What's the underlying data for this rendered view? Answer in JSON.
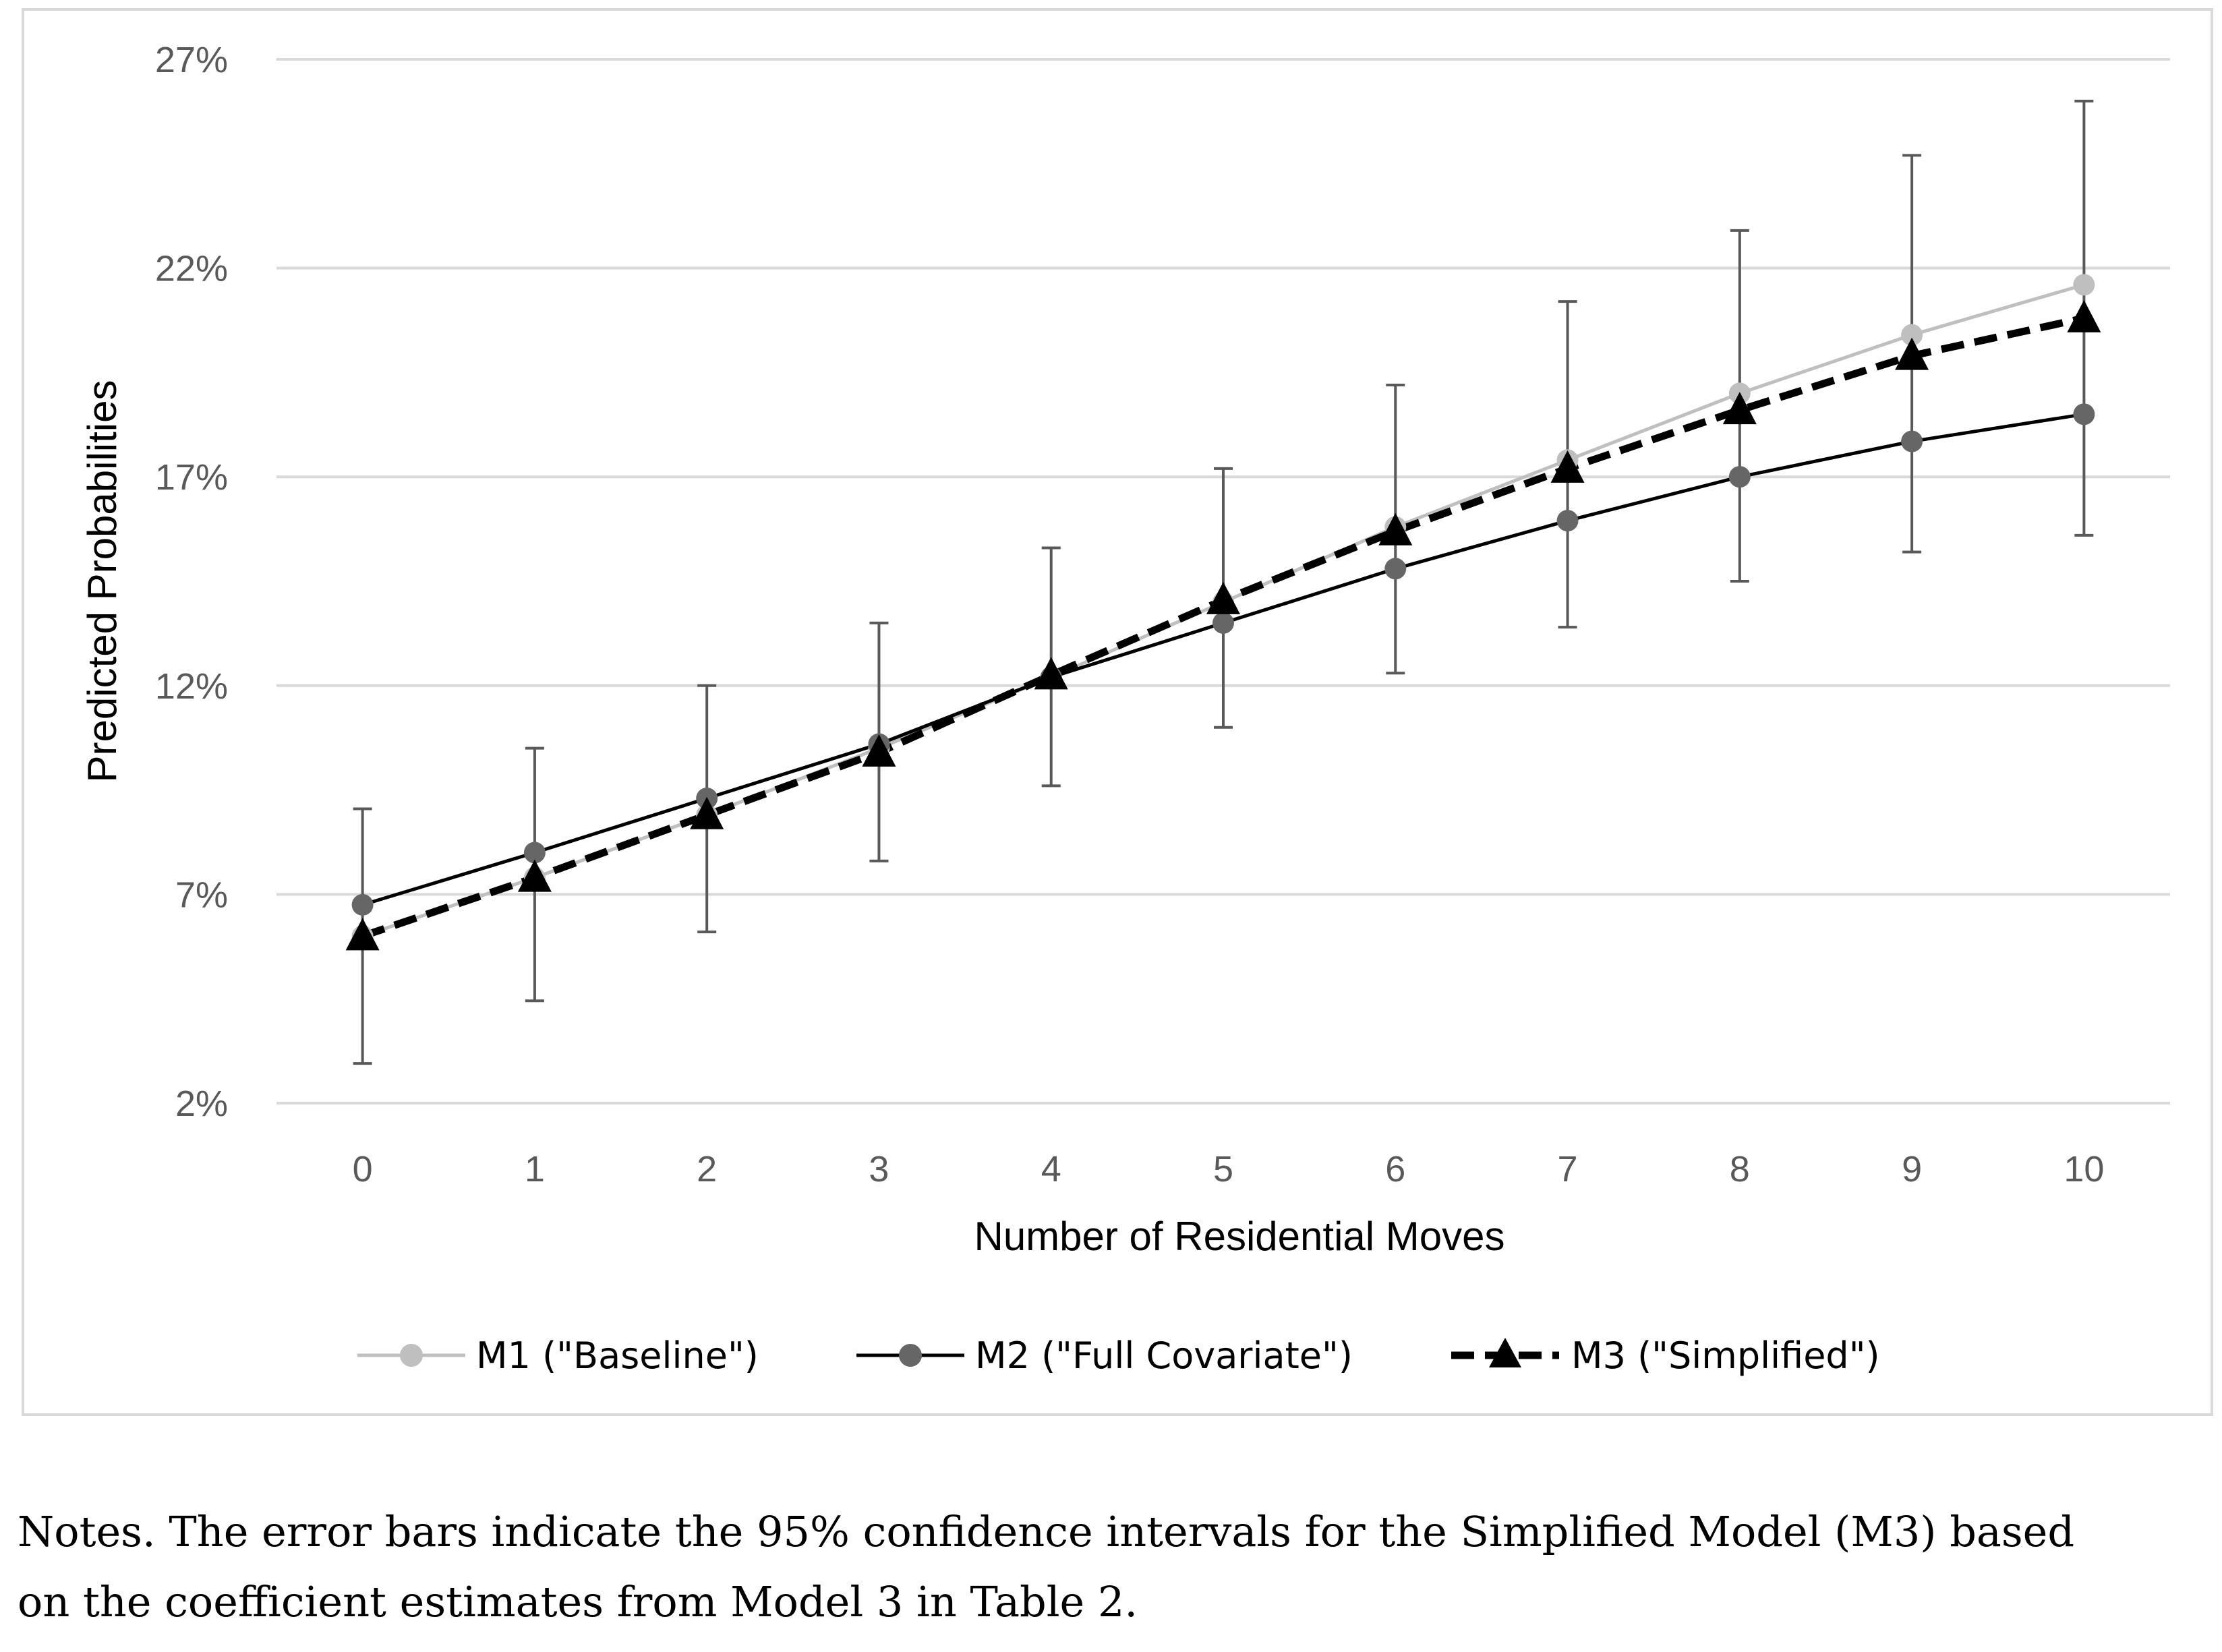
{
  "chart_data": {
    "type": "line",
    "xlabel": "Number of Residential Moves",
    "ylabel": "Predicted Probabilities",
    "x": [
      0,
      1,
      2,
      3,
      4,
      5,
      6,
      7,
      8,
      9,
      10
    ],
    "x_tick_labels": [
      "0",
      "1",
      "2",
      "3",
      "4",
      "5",
      "6",
      "7",
      "8",
      "9",
      "10"
    ],
    "ylim": [
      2,
      27
    ],
    "y_ticks": [
      2,
      7,
      12,
      17,
      22,
      27
    ],
    "y_tick_labels": [
      "2%",
      "7%",
      "12%",
      "17%",
      "22%",
      "27%"
    ],
    "grid": true,
    "legend_position": "bottom",
    "series": [
      {
        "name": "M1 (\"Baseline\")",
        "color": "#bfbfbf",
        "marker": "circle",
        "line_style": "solid",
        "values": [
          6.0,
          7.4,
          8.9,
          10.5,
          12.2,
          14.0,
          15.8,
          17.4,
          19.0,
          20.4,
          21.6
        ]
      },
      {
        "name": "M2 (\"Full Covariate\")",
        "color": "#000000",
        "marker_color": "#666666",
        "marker": "circle",
        "line_style": "solid",
        "values": [
          6.75,
          8.0,
          9.3,
          10.6,
          12.2,
          13.5,
          14.8,
          15.95,
          17.0,
          17.85,
          18.5
        ]
      },
      {
        "name": "M3 (\"Simplified\")",
        "color": "#000000",
        "marker": "triangle",
        "line_style": "dashed",
        "values": [
          6.0,
          7.4,
          8.9,
          10.4,
          12.25,
          14.05,
          15.7,
          17.2,
          18.6,
          19.9,
          20.8
        ],
        "ci_lower": [
          2.95,
          4.45,
          6.1,
          7.8,
          9.6,
          11.0,
          12.3,
          13.4,
          14.5,
          15.2,
          15.6
        ],
        "ci_upper": [
          9.05,
          10.5,
          12.0,
          13.5,
          15.3,
          17.2,
          19.2,
          21.2,
          22.9,
          24.7,
          26.0
        ]
      }
    ],
    "error_bar_color": "#595959"
  },
  "notes": {
    "line1": "Notes. The error bars indicate the 95% confidence intervals for the Simplified Model (M3) based",
    "line2": "on the coefficient estimates from Model 3 in Table 2."
  }
}
